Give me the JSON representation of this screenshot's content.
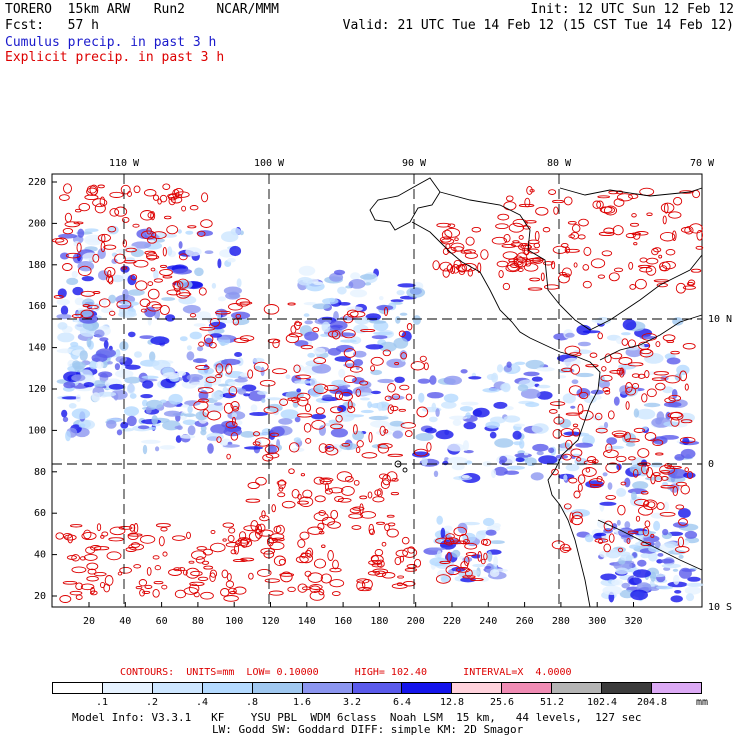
{
  "header": {
    "line1_left": "TORERO  15km ARW   Run2    NCAR/MMM",
    "line1_right": "Init: 12 UTC Sun 12 Feb 12",
    "line2_left": "Fcst:   57 h",
    "line2_right": "Valid: 21 UTC Tue 14 Feb 12 (15 CST Tue 14 Feb 12)",
    "cumulus_label": "Cumulus precip. in past 3 h",
    "explicit_label": "Explicit precip. in past 3 h"
  },
  "colors": {
    "cumulus": "#1a1acc",
    "explicit": "#dd0000",
    "grid": "#000000"
  },
  "map": {
    "top_lon_labels": [
      "110 W",
      "100 W",
      "90 W",
      "80 W",
      "70 W"
    ],
    "right_lat_labels": [
      "10 N",
      "0",
      "10 S"
    ],
    "y_ticks": [
      "220",
      "200",
      "180",
      "160",
      "140",
      "120",
      "100",
      "80",
      "60",
      "40",
      "20"
    ],
    "x_ticks": [
      "20",
      "40",
      "60",
      "80",
      "100",
      "120",
      "140",
      "160",
      "180",
      "200",
      "220",
      "240",
      "260",
      "280",
      "300",
      "320"
    ]
  },
  "contour_info": {
    "text": "CONTOURS:  UNITS=mm  LOW= 0.10000      HIGH= 102.40      INTERVAL=X  4.0000"
  },
  "legend": {
    "labels": [
      ".1",
      ".2",
      ".4",
      ".8",
      "1.6",
      "3.2",
      "6.4",
      "12.8",
      "25.6",
      "51.2",
      "102.4",
      "204.8"
    ],
    "unit": "mm",
    "colors": [
      "#ffffff",
      "#e6f2ff",
      "#cde6ff",
      "#b4daff",
      "#a0c8f0",
      "#8c96f0",
      "#5a5aeb",
      "#1414eb",
      "#ffd2dc",
      "#f08cb4",
      "#b4b4b4",
      "#3c3c3c",
      "#dcaaf5"
    ]
  },
  "footer": {
    "line1": "Model Info: V3.3.1   KF    YSU PBL  WDM 6class  Noah LSM  15 km,   44 levels,  127 sec",
    "line2": "LW: Godd SW: Goddard DIFF: simple KM: 2D Smagor"
  }
}
